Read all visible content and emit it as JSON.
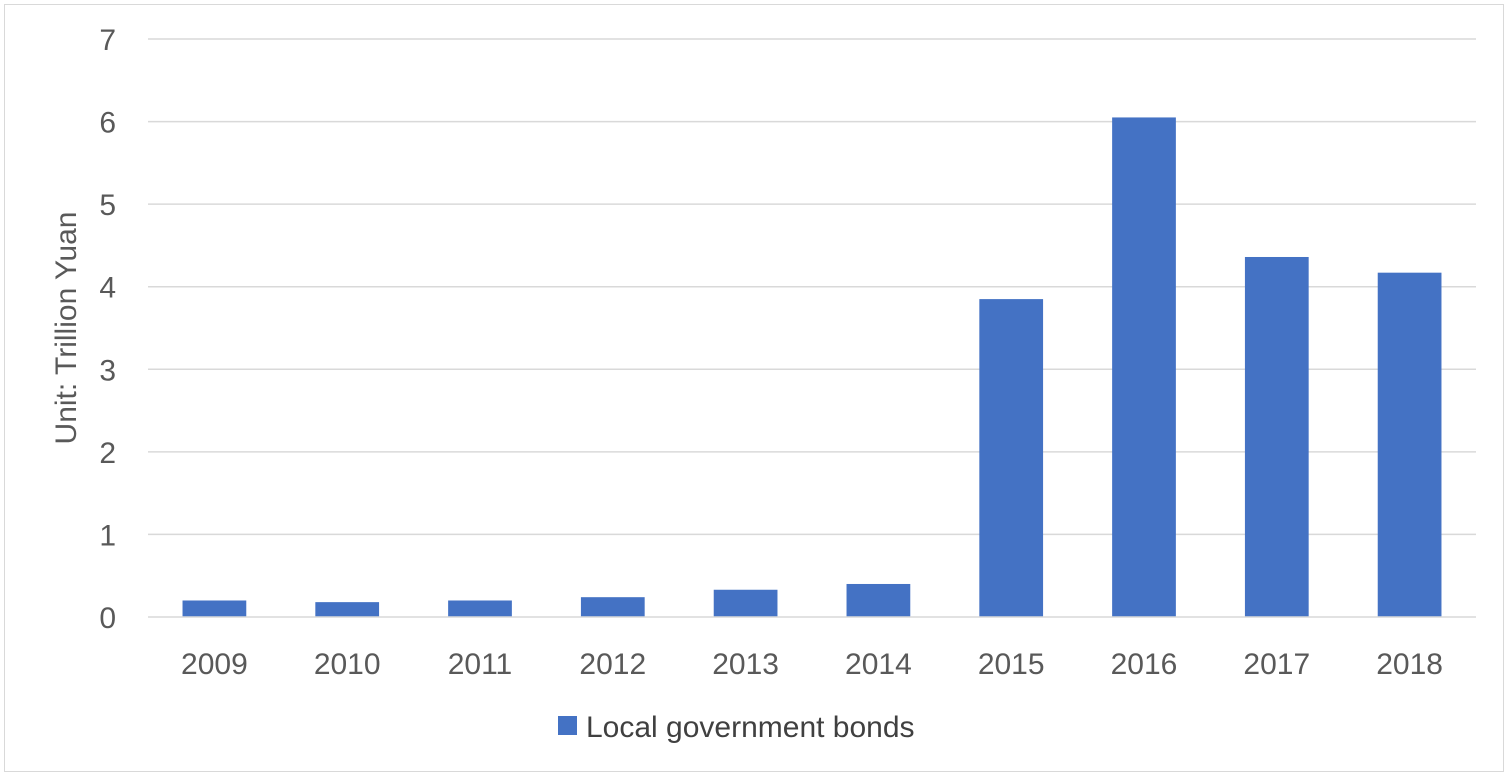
{
  "chart_data": {
    "type": "bar",
    "title": "",
    "xlabel": "",
    "ylabel": "Unit: Trillion Yuan",
    "ylim": [
      0,
      7
    ],
    "yticks": [
      "0",
      "1",
      "2",
      "3",
      "4",
      "5",
      "6",
      "7"
    ],
    "categories": [
      "2009",
      "2010",
      "2011",
      "2012",
      "2013",
      "2014",
      "2015",
      "2016",
      "2017",
      "2018"
    ],
    "series": [
      {
        "name": "Local government bonds",
        "color": "#4472c4",
        "values": [
          0.2,
          0.18,
          0.2,
          0.24,
          0.33,
          0.4,
          3.85,
          6.05,
          4.36,
          4.17
        ]
      }
    ],
    "grid": true,
    "legend": "bottom"
  }
}
